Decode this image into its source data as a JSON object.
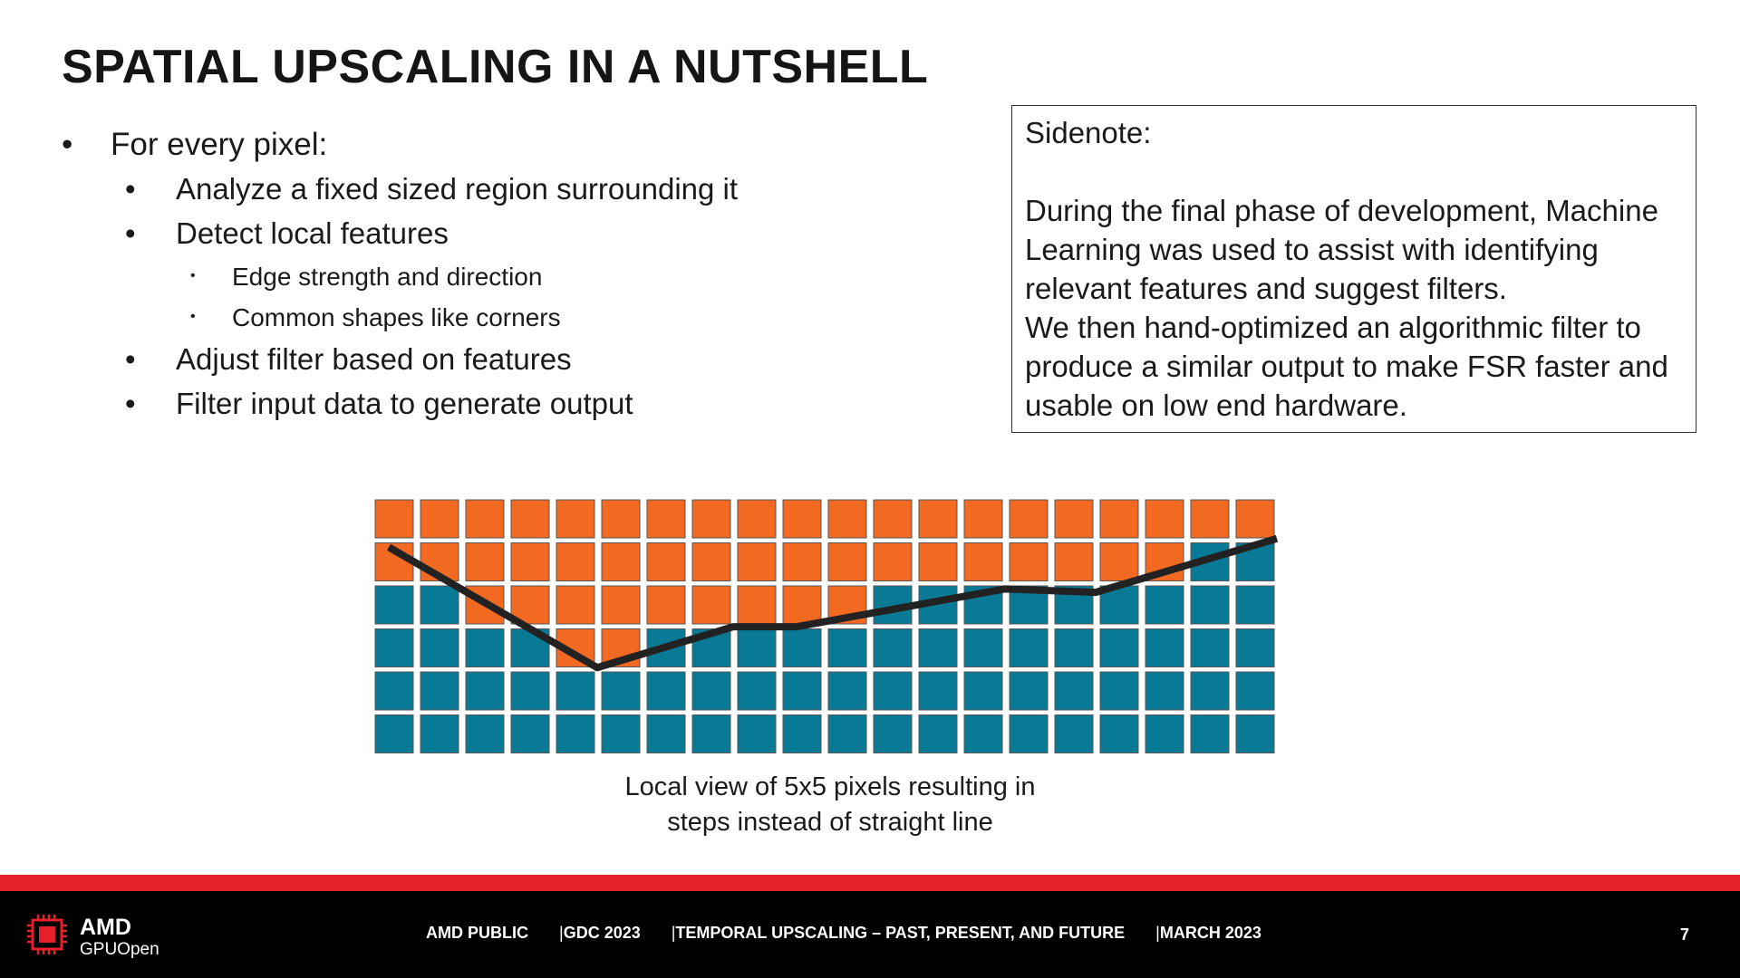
{
  "slide": {
    "title": "SPATIAL UPSCALING IN A NUTSHELL",
    "bullets": [
      {
        "level": 1,
        "text": "For every pixel:"
      },
      {
        "level": 2,
        "text": "Analyze a fixed sized region surrounding it"
      },
      {
        "level": 2,
        "text": "Detect local features"
      },
      {
        "level": 3,
        "text": "Edge strength and direction"
      },
      {
        "level": 3,
        "text": "Common shapes like corners"
      },
      {
        "level": 2,
        "text": "Adjust filter based on features"
      },
      {
        "level": 2,
        "text": "Filter input data to generate output"
      }
    ],
    "sidenote": {
      "heading": "Sidenote:",
      "lines": [
        "During the final phase of development, Machine",
        "Learning was used to assist with identifying",
        "relevant features and suggest filters.",
        "We then hand-optimized an algorithmic filter to",
        "produce a similar output to make FSR faster and",
        "usable on low end hardware."
      ]
    },
    "diagram": {
      "columns": 20,
      "rows": 6,
      "orange_rows_per_column": [
        2,
        2,
        3,
        3,
        4,
        4,
        3,
        3,
        3,
        3,
        3,
        2,
        2,
        2,
        2,
        2,
        2,
        2,
        1,
        1
      ],
      "colors": {
        "orange": "#f26a21",
        "teal": "#087a96",
        "line": "#222222",
        "border": "#555555"
      },
      "polyline_grid_points": [
        [
          0.3,
          1.1
        ],
        [
          4.9,
          3.9
        ],
        [
          7.9,
          2.95
        ],
        [
          9.3,
          2.95
        ],
        [
          13.9,
          2.07
        ],
        [
          15.9,
          2.15
        ],
        [
          19.9,
          0.9
        ]
      ],
      "caption_lines": [
        "Local view of 5x5 pixels resulting in",
        "steps instead of straight line"
      ]
    }
  },
  "footer": {
    "brand": "AMD",
    "brand_sub": "GPUOpen",
    "items": [
      "AMD PUBLIC",
      "GDC 2023",
      "TEMPORAL UPSCALING – PAST, PRESENT, AND FUTURE",
      "MARCH 2023"
    ],
    "separator": "|",
    "page_number": "7",
    "accent_color": "#e5202a"
  }
}
